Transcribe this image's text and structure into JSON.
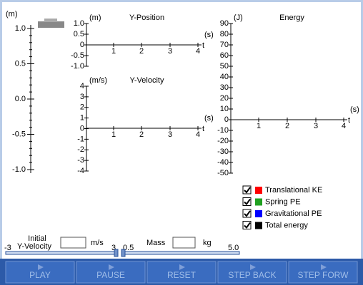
{
  "position_scale": {
    "unit": "(m)",
    "ticks": [
      "1.0",
      "0.5",
      "0.0",
      "-0.5",
      "-1.0"
    ]
  },
  "y_position": {
    "unit": "(m)",
    "title": "Y-Position",
    "yticks": [
      "1.0",
      "0.5",
      "0",
      "-0.5",
      "-1.0"
    ],
    "xticks": [
      "1",
      "2",
      "3",
      "4"
    ],
    "x_unit": "(s)",
    "x_label": "t"
  },
  "y_velocity": {
    "unit": "(m/s)",
    "title": "Y-Velocity",
    "yticks": [
      "4",
      "3",
      "2",
      "1",
      "0",
      "-1",
      "-2",
      "-3",
      "-4"
    ],
    "xticks": [
      "1",
      "2",
      "3",
      "4"
    ],
    "x_unit": "(s)",
    "x_label": "t"
  },
  "energy": {
    "unit": "(J)",
    "title": "Energy",
    "yticks": [
      "90",
      "80",
      "70",
      "60",
      "50",
      "40",
      "30",
      "20",
      "10",
      "0",
      "-10",
      "-20",
      "-30",
      "-40",
      "-50"
    ],
    "xticks": [
      "1",
      "2",
      "3",
      "4"
    ],
    "x_unit": "(s)",
    "x_label": "t"
  },
  "legend": [
    {
      "label": "Translational KE",
      "color": "#ff0000"
    },
    {
      "label": "Spring PE",
      "color": "#20a020"
    },
    {
      "label": "Gravitational PE",
      "color": "#0000ff"
    },
    {
      "label": "Total energy",
      "color": "#000000"
    }
  ],
  "controls": {
    "velocity": {
      "label_line1": "Initial",
      "label_line2": "Y-Velocity",
      "unit": "m/s",
      "min": "-3",
      "max": "3"
    },
    "mass": {
      "label": "Mass",
      "unit": "kg",
      "min": "0.5",
      "max": "5.0"
    }
  },
  "buttons": [
    "PLAY",
    "PAUSE",
    "RESET",
    "STEP BACK",
    "STEP FORW"
  ]
}
